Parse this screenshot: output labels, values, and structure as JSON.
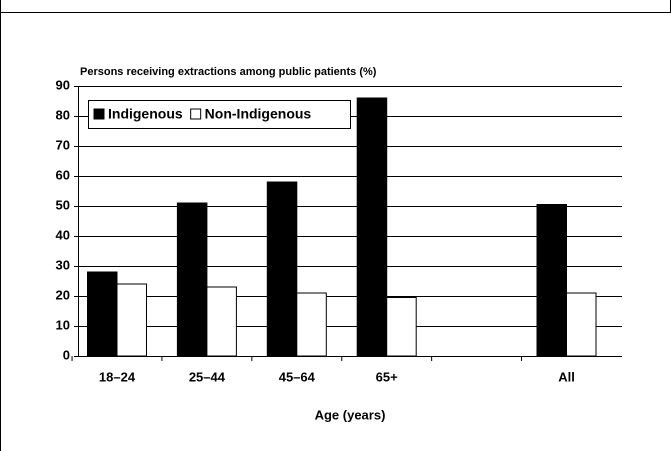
{
  "chart_data": {
    "type": "bar",
    "title": "Persons receiving extractions among public patients (%)",
    "x_label": "Age (years)",
    "categories": [
      "18–24",
      "25–44",
      "45–64",
      "65+",
      null,
      "All"
    ],
    "series": [
      {
        "name": "Indigenous",
        "color": "#000000",
        "values": [
          28,
          51,
          58,
          86,
          null,
          50.5
        ]
      },
      {
        "name": "Non-Indigenous",
        "color": "#ffffff",
        "values": [
          24,
          23,
          21,
          19.5,
          null,
          21
        ]
      }
    ],
    "ylim": [
      0,
      90
    ],
    "yticks": [
      0,
      10,
      20,
      30,
      40,
      50,
      60,
      70,
      80,
      90
    ],
    "grid": true,
    "legend": "upper left"
  }
}
